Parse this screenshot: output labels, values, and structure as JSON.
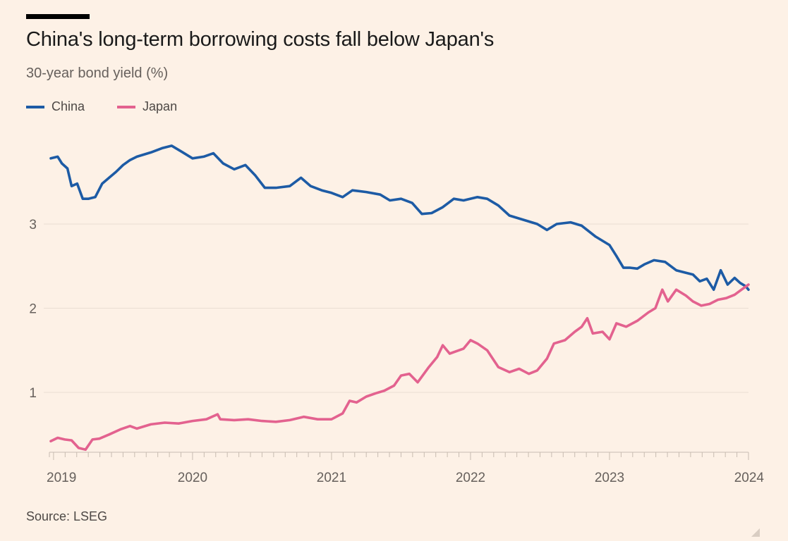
{
  "header": {
    "title": "China's long-term borrowing costs fall below Japan's",
    "subtitle": "30-year bond yield (%)"
  },
  "footer": {
    "source": "Source: LSEG"
  },
  "colors": {
    "background": "#fdf1e6",
    "china": "#1d5ba5",
    "japan": "#e3628f",
    "grid": "#e9ddd2",
    "axis": "#c8bcb1"
  },
  "chart_data": {
    "type": "line",
    "title": "China's long-term borrowing costs fall below Japan's",
    "subtitle": "30-year bond yield (%)",
    "xlabel": "",
    "ylabel": "",
    "legend": "top-left",
    "grid": "horizontal",
    "xlim": [
      2018.97,
      2024.0
    ],
    "ylim": [
      0.3,
      4.0
    ],
    "y_ticks": [
      1,
      2,
      3
    ],
    "x_ticks": [
      "2019",
      "2020",
      "2021",
      "2022",
      "2023",
      "2024"
    ],
    "series": [
      {
        "name": "China",
        "color": "#1d5ba5",
        "points": [
          [
            2018.98,
            3.78
          ],
          [
            2019.03,
            3.8
          ],
          [
            2019.06,
            3.72
          ],
          [
            2019.1,
            3.66
          ],
          [
            2019.13,
            3.45
          ],
          [
            2019.17,
            3.48
          ],
          [
            2019.21,
            3.3
          ],
          [
            2019.25,
            3.3
          ],
          [
            2019.3,
            3.32
          ],
          [
            2019.35,
            3.48
          ],
          [
            2019.4,
            3.55
          ],
          [
            2019.45,
            3.62
          ],
          [
            2019.5,
            3.7
          ],
          [
            2019.55,
            3.76
          ],
          [
            2019.6,
            3.8
          ],
          [
            2019.7,
            3.85
          ],
          [
            2019.78,
            3.9
          ],
          [
            2019.85,
            3.93
          ],
          [
            2019.92,
            3.86
          ],
          [
            2020.0,
            3.78
          ],
          [
            2020.08,
            3.8
          ],
          [
            2020.15,
            3.84
          ],
          [
            2020.22,
            3.72
          ],
          [
            2020.3,
            3.65
          ],
          [
            2020.38,
            3.7
          ],
          [
            2020.45,
            3.58
          ],
          [
            2020.52,
            3.43
          ],
          [
            2020.6,
            3.43
          ],
          [
            2020.7,
            3.45
          ],
          [
            2020.78,
            3.55
          ],
          [
            2020.85,
            3.45
          ],
          [
            2020.93,
            3.4
          ],
          [
            2021.0,
            3.37
          ],
          [
            2021.08,
            3.32
          ],
          [
            2021.15,
            3.4
          ],
          [
            2021.25,
            3.38
          ],
          [
            2021.35,
            3.35
          ],
          [
            2021.42,
            3.28
          ],
          [
            2021.5,
            3.3
          ],
          [
            2021.58,
            3.25
          ],
          [
            2021.65,
            3.12
          ],
          [
            2021.72,
            3.13
          ],
          [
            2021.8,
            3.2
          ],
          [
            2021.88,
            3.3
          ],
          [
            2021.95,
            3.28
          ],
          [
            2022.05,
            3.32
          ],
          [
            2022.12,
            3.3
          ],
          [
            2022.2,
            3.22
          ],
          [
            2022.28,
            3.1
          ],
          [
            2022.38,
            3.05
          ],
          [
            2022.48,
            3.0
          ],
          [
            2022.55,
            2.93
          ],
          [
            2022.62,
            3.0
          ],
          [
            2022.72,
            3.02
          ],
          [
            2022.8,
            2.98
          ],
          [
            2022.9,
            2.85
          ],
          [
            2023.0,
            2.75
          ],
          [
            2023.05,
            2.62
          ],
          [
            2023.1,
            2.48
          ],
          [
            2023.15,
            2.48
          ],
          [
            2023.2,
            2.47
          ],
          [
            2023.25,
            2.52
          ],
          [
            2023.32,
            2.57
          ],
          [
            2023.4,
            2.55
          ],
          [
            2023.48,
            2.45
          ],
          [
            2023.55,
            2.42
          ],
          [
            2023.6,
            2.4
          ],
          [
            2023.65,
            2.32
          ],
          [
            2023.7,
            2.35
          ],
          [
            2023.75,
            2.22
          ],
          [
            2023.8,
            2.45
          ],
          [
            2023.85,
            2.28
          ],
          [
            2023.9,
            2.36
          ],
          [
            2023.94,
            2.3
          ],
          [
            2023.98,
            2.26
          ],
          [
            2024.0,
            2.22
          ]
        ]
      },
      {
        "name": "Japan",
        "color": "#e3628f",
        "points": [
          [
            2018.98,
            0.42
          ],
          [
            2019.03,
            0.46
          ],
          [
            2019.08,
            0.44
          ],
          [
            2019.13,
            0.43
          ],
          [
            2019.18,
            0.34
          ],
          [
            2019.23,
            0.32
          ],
          [
            2019.28,
            0.44
          ],
          [
            2019.33,
            0.45
          ],
          [
            2019.4,
            0.5
          ],
          [
            2019.48,
            0.56
          ],
          [
            2019.55,
            0.6
          ],
          [
            2019.6,
            0.57
          ],
          [
            2019.7,
            0.62
          ],
          [
            2019.8,
            0.64
          ],
          [
            2019.9,
            0.63
          ],
          [
            2020.0,
            0.66
          ],
          [
            2020.1,
            0.68
          ],
          [
            2020.18,
            0.74
          ],
          [
            2020.2,
            0.68
          ],
          [
            2020.3,
            0.67
          ],
          [
            2020.4,
            0.68
          ],
          [
            2020.5,
            0.66
          ],
          [
            2020.6,
            0.65
          ],
          [
            2020.7,
            0.67
          ],
          [
            2020.8,
            0.71
          ],
          [
            2020.9,
            0.68
          ],
          [
            2021.0,
            0.68
          ],
          [
            2021.08,
            0.75
          ],
          [
            2021.13,
            0.9
          ],
          [
            2021.18,
            0.88
          ],
          [
            2021.25,
            0.95
          ],
          [
            2021.32,
            0.99
          ],
          [
            2021.38,
            1.02
          ],
          [
            2021.45,
            1.08
          ],
          [
            2021.5,
            1.2
          ],
          [
            2021.56,
            1.22
          ],
          [
            2021.62,
            1.12
          ],
          [
            2021.7,
            1.3
          ],
          [
            2021.76,
            1.42
          ],
          [
            2021.8,
            1.56
          ],
          [
            2021.85,
            1.46
          ],
          [
            2021.9,
            1.49
          ],
          [
            2021.95,
            1.52
          ],
          [
            2022.0,
            1.62
          ],
          [
            2022.05,
            1.58
          ],
          [
            2022.12,
            1.5
          ],
          [
            2022.2,
            1.3
          ],
          [
            2022.28,
            1.24
          ],
          [
            2022.35,
            1.28
          ],
          [
            2022.42,
            1.22
          ],
          [
            2022.48,
            1.26
          ],
          [
            2022.55,
            1.4
          ],
          [
            2022.6,
            1.58
          ],
          [
            2022.68,
            1.62
          ],
          [
            2022.75,
            1.72
          ],
          [
            2022.8,
            1.78
          ],
          [
            2022.84,
            1.88
          ],
          [
            2022.88,
            1.7
          ],
          [
            2022.95,
            1.72
          ],
          [
            2023.0,
            1.63
          ],
          [
            2023.05,
            1.82
          ],
          [
            2023.12,
            1.78
          ],
          [
            2023.2,
            1.85
          ],
          [
            2023.28,
            1.95
          ],
          [
            2023.33,
            2.0
          ],
          [
            2023.38,
            2.22
          ],
          [
            2023.42,
            2.08
          ],
          [
            2023.48,
            2.22
          ],
          [
            2023.55,
            2.15
          ],
          [
            2023.6,
            2.08
          ],
          [
            2023.66,
            2.03
          ],
          [
            2023.72,
            2.05
          ],
          [
            2023.78,
            2.1
          ],
          [
            2023.84,
            2.12
          ],
          [
            2023.9,
            2.16
          ],
          [
            2023.95,
            2.22
          ],
          [
            2024.0,
            2.28
          ]
        ]
      }
    ]
  }
}
